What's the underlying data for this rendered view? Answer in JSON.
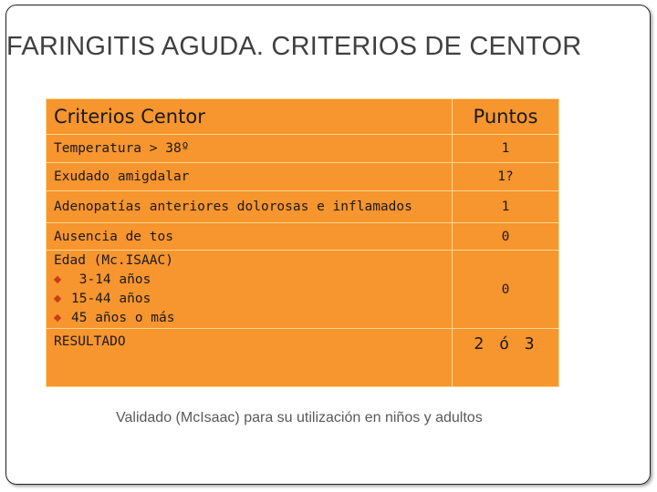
{
  "slide": {
    "title": "FARINGITIS AGUDA. CRITERIOS DE CENTOR",
    "footnote": "Validado (McIsaac) para su utilización en niños y adultos"
  },
  "table": {
    "headers": {
      "criteria": "Criterios Centor",
      "points": "Puntos"
    },
    "rows": [
      {
        "criterion": "Temperatura > 38º",
        "points": "1"
      },
      {
        "criterion": "Exudado amigdalar",
        "points": "1?"
      },
      {
        "criterion": "Adenopatías anteriores dolorosas e inflamados",
        "points": "1"
      },
      {
        "criterion": "Ausencia de tos",
        "points": "0"
      }
    ],
    "age": {
      "title": "Edad (Mc.ISAAC)",
      "items": [
        " 3-14 años",
        "15-44 años",
        "45 años o más"
      ],
      "points": "0"
    },
    "result": {
      "label": "RESULTADO",
      "value": "2 ó 3"
    }
  }
}
